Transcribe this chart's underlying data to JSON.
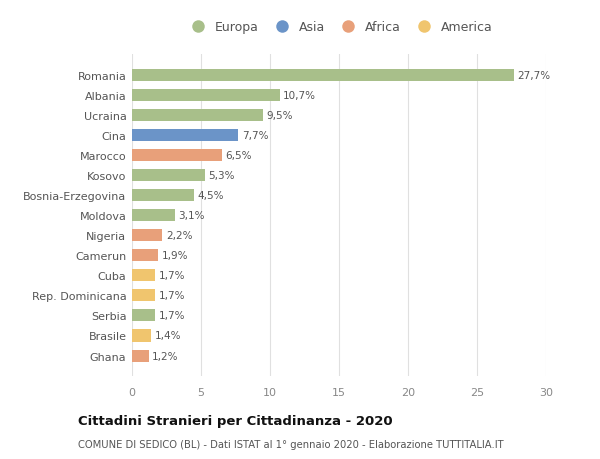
{
  "categories": [
    "Ghana",
    "Brasile",
    "Serbia",
    "Rep. Dominicana",
    "Cuba",
    "Camerun",
    "Nigeria",
    "Moldova",
    "Bosnia-Erzegovina",
    "Kosovo",
    "Marocco",
    "Cina",
    "Ucraina",
    "Albania",
    "Romania"
  ],
  "values": [
    1.2,
    1.4,
    1.7,
    1.7,
    1.7,
    1.9,
    2.2,
    3.1,
    4.5,
    5.3,
    6.5,
    7.7,
    9.5,
    10.7,
    27.7
  ],
  "labels": [
    "1,2%",
    "1,4%",
    "1,7%",
    "1,7%",
    "1,7%",
    "1,9%",
    "2,2%",
    "3,1%",
    "4,5%",
    "5,3%",
    "6,5%",
    "7,7%",
    "9,5%",
    "10,7%",
    "27,7%"
  ],
  "colors": [
    "#e8a07a",
    "#f0c56e",
    "#a8bf8a",
    "#f0c56e",
    "#f0c56e",
    "#e8a07a",
    "#e8a07a",
    "#a8bf8a",
    "#a8bf8a",
    "#a8bf8a",
    "#e8a07a",
    "#6b94c8",
    "#a8bf8a",
    "#a8bf8a",
    "#a8bf8a"
  ],
  "legend_labels": [
    "Europa",
    "Asia",
    "Africa",
    "America"
  ],
  "legend_colors": [
    "#a8bf8a",
    "#6b94c8",
    "#e8a07a",
    "#f0c56e"
  ],
  "title": "Cittadini Stranieri per Cittadinanza - 2020",
  "subtitle": "COMUNE DI SEDICO (BL) - Dati ISTAT al 1° gennaio 2020 - Elaborazione TUTTITALIA.IT",
  "xlim": [
    0,
    30
  ],
  "xticks": [
    0,
    5,
    10,
    15,
    20,
    25,
    30
  ],
  "background_color": "#ffffff",
  "grid_color": "#e0e0e0",
  "bar_height": 0.6
}
